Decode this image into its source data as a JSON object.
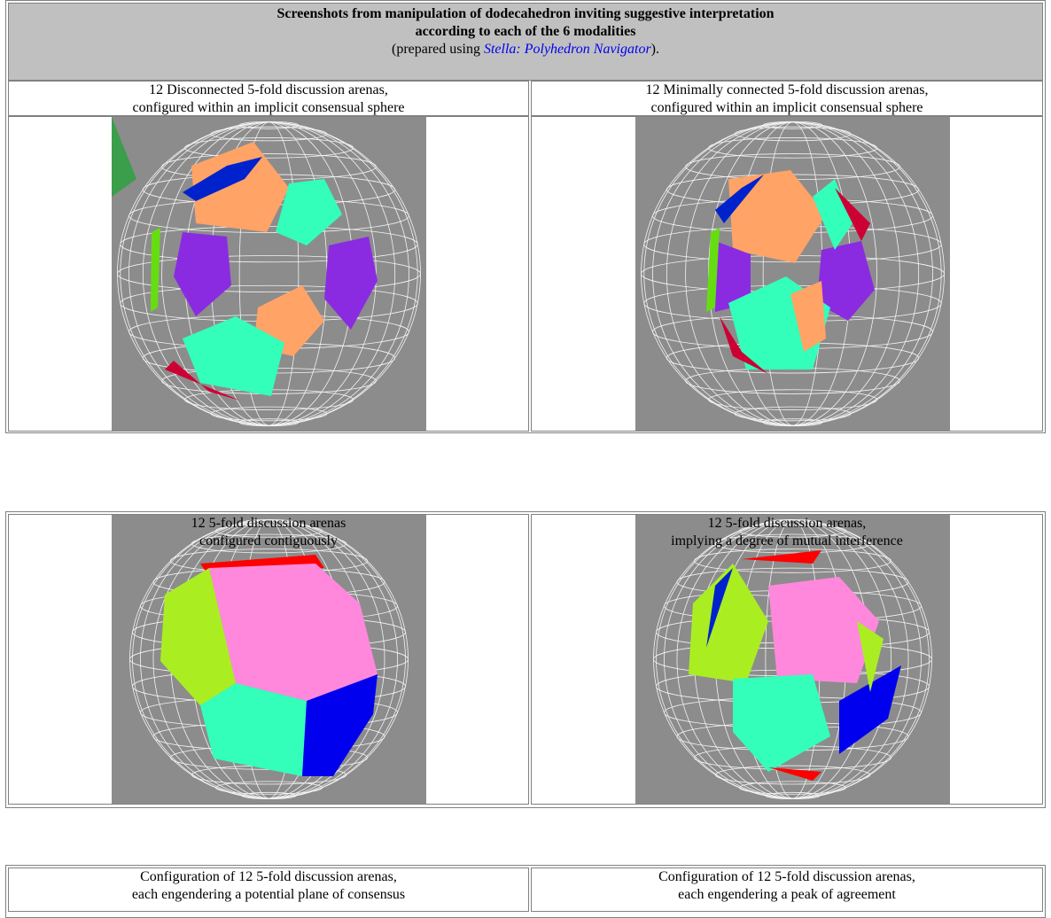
{
  "header": {
    "title_line1": "Screenshots from manipulation of dodecahedron inviting suggestive interpretation",
    "title_line2": "according to each of the 6 modalities",
    "note_prefix": "(prepared using ",
    "note_link": "Stella: Polyhedron Navigator",
    "note_suffix": ")."
  },
  "tables": [
    {
      "captions": [
        [
          "12 Disconnected 5-fold discussion arenas,",
          "configured within an implicit consensual sphere"
        ],
        [
          "12 Minimally connected 5-fold discussion arenas,",
          "configured within an implicit consensual sphere"
        ]
      ]
    },
    {
      "captions": [
        [
          "12 5-fold discussion arenas",
          "configured contiguously"
        ],
        [
          "12 5-fold discussion arenas,",
          "implying a degree of mutual interference"
        ]
      ]
    },
    {
      "captions": [
        [
          "Configuration of 12 5-fold discussion arenas,",
          "each engendering a potential plane of consensus"
        ],
        [
          "Configuration of 12 5-fold discussion arenas,",
          "each engendering a peak of agreement"
        ]
      ]
    }
  ]
}
